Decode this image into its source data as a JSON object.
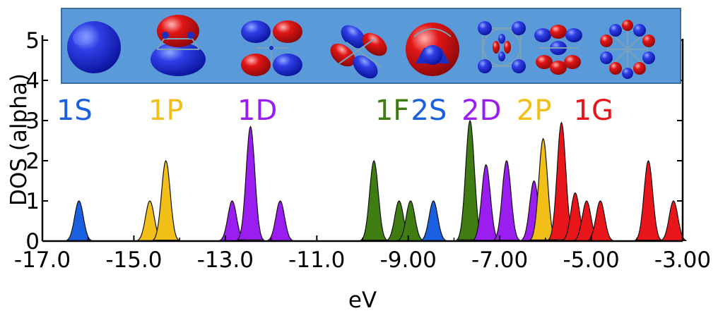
{
  "chart_data": {
    "type": "area",
    "xlabel": "eV",
    "ylabel": "DOS (alpha)",
    "xlim": [
      -17.0,
      -3.0
    ],
    "ylim": [
      0,
      5.5
    ],
    "x_ticks": [
      -17,
      -15,
      -13,
      -11,
      -9,
      -7,
      -5,
      -3
    ],
    "x_tick_labels": [
      "-17.0",
      "-15.0",
      "-13.0",
      "-11.0",
      "-9.00",
      "-7.00",
      "-5.00",
      "-3.00"
    ],
    "y_ticks": [
      0,
      1,
      2,
      3,
      4,
      5
    ],
    "y_tick_labels": [
      "0",
      "1",
      "2",
      "3",
      "4",
      "5"
    ],
    "grid": false,
    "peak_width_ev": 0.095,
    "shells": [
      {
        "label": "1S",
        "color": "#1a5fe0",
        "peaks": [
          {
            "x": -16.2,
            "y": 1.0
          }
        ]
      },
      {
        "label": "1P",
        "color": "#f2be18",
        "peaks": [
          {
            "x": -14.65,
            "y": 1.0
          },
          {
            "x": -14.3,
            "y": 2.0
          }
        ]
      },
      {
        "label": "1D",
        "color": "#9a1ef0",
        "peaks": [
          {
            "x": -12.85,
            "y": 1.0
          },
          {
            "x": -12.45,
            "y": 2.85
          },
          {
            "x": -11.8,
            "y": 1.0
          }
        ]
      },
      {
        "label": "1F",
        "color": "#3f7d12",
        "peaks": [
          {
            "x": -9.75,
            "y": 2.0
          },
          {
            "x": -9.2,
            "y": 1.0
          },
          {
            "x": -8.95,
            "y": 1.0
          },
          {
            "x": -7.65,
            "y": 3.0
          }
        ]
      },
      {
        "label": "2S",
        "color": "#1a5fe0",
        "peaks": [
          {
            "x": -8.45,
            "y": 1.0
          }
        ]
      },
      {
        "label": "2D",
        "color": "#9a1ef0",
        "peaks": [
          {
            "x": -7.3,
            "y": 1.9
          },
          {
            "x": -6.85,
            "y": 2.0
          },
          {
            "x": -6.25,
            "y": 1.5
          }
        ]
      },
      {
        "label": "2P",
        "color": "#f2be18",
        "peaks": [
          {
            "x": -6.05,
            "y": 2.55
          }
        ]
      },
      {
        "label": "1G",
        "color": "#e8161b",
        "peaks": [
          {
            "x": -5.65,
            "y": 2.95
          },
          {
            "x": -5.35,
            "y": 1.2
          },
          {
            "x": -5.1,
            "y": 1.0
          },
          {
            "x": -4.8,
            "y": 1.0
          },
          {
            "x": -3.75,
            "y": 2.0
          },
          {
            "x": -3.2,
            "y": 1.0
          }
        ]
      }
    ],
    "annotations": [
      {
        "text": "1S",
        "color": "#1a5fe0",
        "x": -16.3
      },
      {
        "text": "1P",
        "color": "#f2be18",
        "x": -14.3
      },
      {
        "text": "1D",
        "color": "#9a1ef0",
        "x": -12.3
      },
      {
        "text": "1F",
        "color": "#3f7d12",
        "x": -9.35
      },
      {
        "text": "2S",
        "color": "#1a5fe0",
        "x": -8.55
      },
      {
        "text": "2D",
        "color": "#9a1ef0",
        "x": -7.4
      },
      {
        "text": "2P",
        "color": "#f2be18",
        "x": -6.25
      },
      {
        "text": "1G",
        "color": "#e8161b",
        "x": -4.95
      }
    ],
    "inset": {
      "background": "#5b9ad8",
      "border": "#3b6ea3"
    }
  }
}
